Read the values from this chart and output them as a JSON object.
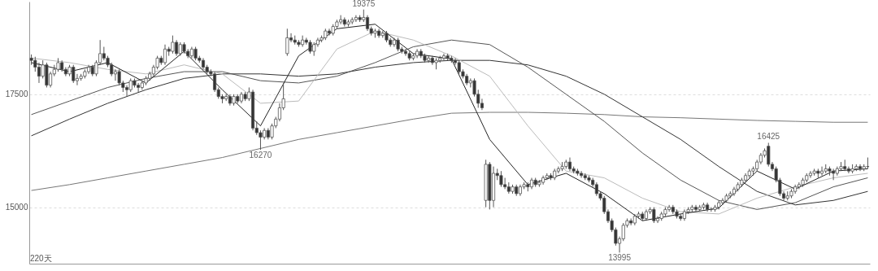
{
  "chart_data": {
    "type": "candlestick",
    "categories": [
      null,
      null,
      null,
      null,
      null,
      null,
      null,
      null,
      null,
      null,
      null,
      null,
      null,
      null,
      null,
      null,
      null,
      null,
      null,
      null,
      null,
      null,
      null,
      null,
      null,
      null,
      null,
      null,
      null,
      null,
      null,
      null,
      null,
      null,
      null,
      null,
      null,
      null,
      null,
      null,
      null,
      null,
      null,
      null,
      null,
      null,
      null,
      null,
      null,
      null,
      null,
      null,
      null,
      null,
      null,
      null,
      null,
      null,
      null,
      null,
      null,
      null,
      null,
      null,
      null,
      null,
      null,
      null,
      null,
      null,
      null,
      null,
      null,
      null,
      null,
      null,
      null,
      null,
      null,
      null,
      null,
      null,
      null,
      null,
      null,
      null,
      null,
      null,
      null,
      null,
      null,
      null,
      null,
      null,
      null,
      null,
      null,
      null,
      null,
      null,
      null,
      null,
      null,
      null,
      null,
      null,
      null,
      null,
      null,
      null,
      null,
      null,
      null,
      null,
      null,
      null,
      null,
      null,
      null,
      null,
      null,
      null,
      null,
      null,
      null,
      null,
      null,
      null,
      null,
      null,
      null,
      null,
      null,
      null,
      null,
      null,
      null,
      null,
      null,
      null,
      null,
      null,
      null,
      null,
      null,
      null,
      null,
      null,
      null,
      null,
      null,
      null,
      null,
      null,
      null,
      null,
      null,
      null,
      null,
      null,
      null,
      null,
      null,
      null,
      null,
      null,
      null,
      null,
      null,
      null,
      null,
      null,
      null,
      null,
      null,
      null,
      null,
      null,
      null,
      null,
      null,
      null,
      null,
      null,
      null,
      null,
      null,
      null,
      null,
      null,
      null,
      null,
      null,
      null,
      null,
      null,
      null,
      null,
      null,
      null,
      null,
      null,
      null,
      null,
      null,
      null,
      null,
      null,
      null,
      null,
      null,
      null,
      null,
      null,
      null,
      null,
      null,
      null,
      null,
      null
    ],
    "ohlc": [
      [
        18300,
        18380,
        18150,
        18250
      ],
      [
        18250,
        18330,
        18000,
        18100
      ],
      [
        18100,
        18200,
        17750,
        17900
      ],
      [
        17900,
        18250,
        17850,
        18150
      ],
      [
        18150,
        18200,
        17650,
        17700
      ],
      [
        17700,
        18000,
        17650,
        17950
      ],
      [
        17950,
        18150,
        17900,
        18050
      ],
      [
        18050,
        18300,
        18000,
        18200
      ],
      [
        18200,
        18250,
        18000,
        18050
      ],
      [
        18050,
        18100,
        17900,
        17950
      ],
      [
        17950,
        18150,
        17900,
        18100
      ],
      [
        18100,
        18150,
        17750,
        17800
      ],
      [
        17800,
        17950,
        17700,
        17850
      ],
      [
        17850,
        17950,
        17800,
        17900
      ],
      [
        17900,
        18050,
        17850,
        18000
      ],
      [
        18000,
        18150,
        17950,
        18100
      ],
      [
        18100,
        18150,
        17900,
        17950
      ],
      [
        17950,
        18250,
        17900,
        18200
      ],
      [
        18200,
        18700,
        18150,
        18400
      ],
      [
        18400,
        18550,
        18250,
        18300
      ],
      [
        18300,
        18350,
        18100,
        18150
      ],
      [
        18150,
        18200,
        17900,
        17950
      ],
      [
        17950,
        18050,
        17800,
        18000
      ],
      [
        18000,
        18050,
        17700,
        17750
      ],
      [
        17750,
        17800,
        17550,
        17650
      ],
      [
        17650,
        17700,
        17450,
        17600
      ],
      [
        17600,
        17850,
        17550,
        17800
      ],
      [
        17800,
        17850,
        17650,
        17700
      ],
      [
        17700,
        17750,
        17550,
        17650
      ],
      [
        17650,
        17800,
        17600,
        17750
      ],
      [
        17750,
        17900,
        17700,
        17850
      ],
      [
        17850,
        18000,
        17800,
        17950
      ],
      [
        17950,
        18150,
        17900,
        18100
      ],
      [
        18100,
        18350,
        18050,
        18300
      ],
      [
        18300,
        18350,
        18150,
        18200
      ],
      [
        18200,
        18600,
        18150,
        18500
      ],
      [
        18500,
        18550,
        18350,
        18450
      ],
      [
        18450,
        18800,
        18400,
        18650
      ],
      [
        18650,
        18700,
        18350,
        18400
      ],
      [
        18400,
        18650,
        18350,
        18600
      ],
      [
        18600,
        18650,
        18400,
        18450
      ],
      [
        18450,
        18500,
        18300,
        18350
      ],
      [
        18350,
        18550,
        18300,
        18500
      ],
      [
        18500,
        18550,
        18250,
        18300
      ],
      [
        18300,
        18350,
        18200,
        18250
      ],
      [
        18250,
        18300,
        18050,
        18100
      ],
      [
        18100,
        18150,
        17950,
        18000
      ],
      [
        18000,
        18050,
        17900,
        17950
      ],
      [
        17950,
        18000,
        17550,
        17600
      ],
      [
        17600,
        17650,
        17400,
        17450
      ],
      [
        17450,
        17500,
        17300,
        17400
      ],
      [
        17400,
        17500,
        17350,
        17450
      ],
      [
        17450,
        17500,
        17250,
        17300
      ],
      [
        17300,
        17500,
        17250,
        17450
      ],
      [
        17450,
        17500,
        17300,
        17350
      ],
      [
        17350,
        17550,
        17300,
        17500
      ],
      [
        17500,
        17550,
        17350,
        17400
      ],
      [
        17400,
        17650,
        17350,
        17550
      ],
      [
        17550,
        17600,
        16700,
        16750
      ],
      [
        16750,
        16900,
        16600,
        16650
      ],
      [
        16650,
        16700,
        16270,
        16550
      ],
      [
        16550,
        16750,
        16500,
        16700
      ],
      [
        16700,
        16750,
        16500,
        16550
      ],
      [
        16550,
        16850,
        16500,
        16800
      ],
      [
        16800,
        17000,
        16750,
        16950
      ],
      [
        16950,
        17300,
        16900,
        17200
      ],
      [
        17200,
        17750,
        17150,
        17400
      ],
      [
        18400,
        18950,
        18350,
        18750
      ],
      [
        18750,
        18850,
        18650,
        18700
      ],
      [
        18700,
        18800,
        18600,
        18650
      ],
      [
        18650,
        18700,
        18550,
        18600
      ],
      [
        18600,
        18800,
        18550,
        18700
      ],
      [
        18700,
        18750,
        18600,
        18650
      ],
      [
        18650,
        18700,
        18400,
        18450
      ],
      [
        18450,
        18650,
        18350,
        18600
      ],
      [
        18600,
        18750,
        18550,
        18700
      ],
      [
        18700,
        18800,
        18650,
        18750
      ],
      [
        18750,
        18950,
        18700,
        18900
      ],
      [
        18900,
        18950,
        18800,
        18850
      ],
      [
        18850,
        19050,
        18800,
        19000
      ],
      [
        19000,
        19150,
        18950,
        19100
      ],
      [
        19100,
        19250,
        19050,
        19150
      ],
      [
        19150,
        19200,
        19000,
        19050
      ],
      [
        19050,
        19150,
        19000,
        19100
      ],
      [
        19100,
        19200,
        19050,
        19150
      ],
      [
        19150,
        19250,
        19100,
        19200
      ],
      [
        19200,
        19250,
        19100,
        19150
      ],
      [
        19150,
        19375,
        19100,
        19200
      ],
      [
        19200,
        19250,
        18900,
        18950
      ],
      [
        18950,
        19000,
        18800,
        18850
      ],
      [
        18850,
        18950,
        18750,
        18900
      ],
      [
        18900,
        18950,
        18750,
        18800
      ],
      [
        18800,
        18900,
        18750,
        18850
      ],
      [
        18850,
        18900,
        18650,
        18700
      ],
      [
        18700,
        18750,
        18550,
        18600
      ],
      [
        18600,
        18750,
        18550,
        18700
      ],
      [
        18700,
        18750,
        18450,
        18500
      ],
      [
        18500,
        18550,
        18400,
        18450
      ],
      [
        18450,
        18500,
        18350,
        18400
      ],
      [
        18400,
        18450,
        18250,
        18300
      ],
      [
        18300,
        18400,
        18250,
        18350
      ],
      [
        18350,
        18500,
        18300,
        18450
      ],
      [
        18450,
        18500,
        18300,
        18350
      ],
      [
        18350,
        18400,
        18200,
        18250
      ],
      [
        18250,
        18350,
        18200,
        18300
      ],
      [
        18300,
        18350,
        18150,
        18200
      ],
      [
        18200,
        18300,
        18050,
        18250
      ],
      [
        18250,
        18350,
        18200,
        18300
      ],
      [
        18300,
        18400,
        18250,
        18350
      ],
      [
        18350,
        18400,
        18250,
        18300
      ],
      [
        18300,
        18350,
        18200,
        18250
      ],
      [
        18250,
        18300,
        18150,
        18200
      ],
      [
        18200,
        18250,
        17950,
        18000
      ],
      [
        18000,
        18050,
        17850,
        17900
      ],
      [
        17900,
        17950,
        17700,
        17750
      ],
      [
        17750,
        17850,
        17650,
        17800
      ],
      [
        17800,
        17850,
        17450,
        17500
      ],
      [
        17500,
        17600,
        17200,
        17300
      ],
      [
        17300,
        17400,
        17150,
        17200
      ],
      [
        15150,
        16050,
        15000,
        15950
      ],
      [
        15950,
        16000,
        14950,
        15150
      ],
      [
        15150,
        15900,
        15000,
        15750
      ],
      [
        15750,
        15850,
        15600,
        15700
      ],
      [
        15700,
        15800,
        15450,
        15500
      ],
      [
        15500,
        15650,
        15400,
        15450
      ],
      [
        15450,
        15550,
        15300,
        15350
      ],
      [
        15350,
        15500,
        15300,
        15450
      ],
      [
        15450,
        15500,
        15250,
        15300
      ],
      [
        15300,
        15500,
        15250,
        15450
      ],
      [
        15450,
        15550,
        15400,
        15500
      ],
      [
        15500,
        15550,
        15350,
        15450
      ],
      [
        15450,
        15650,
        15400,
        15600
      ],
      [
        15600,
        15650,
        15450,
        15500
      ],
      [
        15500,
        15600,
        15450,
        15550
      ],
      [
        15550,
        15700,
        15500,
        15650
      ],
      [
        15650,
        15750,
        15600,
        15700
      ],
      [
        15700,
        15750,
        15600,
        15650
      ],
      [
        15650,
        15850,
        15600,
        15800
      ],
      [
        15800,
        15900,
        15750,
        15850
      ],
      [
        15850,
        16000,
        15800,
        15900
      ],
      [
        15900,
        16050,
        15850,
        16000
      ],
      [
        16000,
        16100,
        15800,
        15850
      ],
      [
        15850,
        15900,
        15750,
        15800
      ],
      [
        15800,
        15850,
        15700,
        15750
      ],
      [
        15750,
        15800,
        15650,
        15700
      ],
      [
        15700,
        15750,
        15600,
        15650
      ],
      [
        15650,
        15700,
        15550,
        15600
      ],
      [
        15600,
        15650,
        15450,
        15500
      ],
      [
        15500,
        15550,
        15250,
        15300
      ],
      [
        15300,
        15350,
        15150,
        15200
      ],
      [
        15200,
        15250,
        14850,
        14900
      ],
      [
        14900,
        14950,
        14650,
        14700
      ],
      [
        14700,
        14750,
        14450,
        14500
      ],
      [
        14500,
        14550,
        14150,
        14200
      ],
      [
        14200,
        14350,
        13995,
        14300
      ],
      [
        14300,
        14650,
        14250,
        14600
      ],
      [
        14600,
        14750,
        14550,
        14700
      ],
      [
        14700,
        14750,
        14600,
        14650
      ],
      [
        14650,
        14850,
        14600,
        14800
      ],
      [
        14800,
        14900,
        14750,
        14850
      ],
      [
        14850,
        14900,
        14700,
        14750
      ],
      [
        14750,
        14950,
        14700,
        14900
      ],
      [
        14900,
        15000,
        14850,
        14950
      ],
      [
        14950,
        15000,
        14650,
        14700
      ],
      [
        14700,
        14800,
        14650,
        14750
      ],
      [
        14750,
        14900,
        14700,
        14850
      ],
      [
        14850,
        15000,
        14800,
        14950
      ],
      [
        14950,
        15050,
        14900,
        15000
      ],
      [
        15000,
        15050,
        14850,
        14900
      ],
      [
        14900,
        14950,
        14750,
        14800
      ],
      [
        14800,
        14850,
        14700,
        14750
      ],
      [
        14750,
        14950,
        14700,
        14900
      ],
      [
        14900,
        15000,
        14850,
        14950
      ],
      [
        14950,
        15050,
        14900,
        15000
      ],
      [
        15000,
        15050,
        14900,
        14950
      ],
      [
        14950,
        15050,
        14900,
        15000
      ],
      [
        15000,
        15100,
        14950,
        15050
      ],
      [
        15050,
        15100,
        14900,
        14950
      ],
      [
        14950,
        15000,
        14900,
        14950
      ],
      [
        14950,
        15050,
        14900,
        15000
      ],
      [
        15000,
        15150,
        14950,
        15100
      ],
      [
        15100,
        15200,
        15050,
        15150
      ],
      [
        15150,
        15300,
        15100,
        15250
      ],
      [
        15250,
        15350,
        15200,
        15300
      ],
      [
        15300,
        15450,
        15250,
        15400
      ],
      [
        15400,
        15550,
        15350,
        15500
      ],
      [
        15500,
        15650,
        15450,
        15600
      ],
      [
        15600,
        15750,
        15550,
        15700
      ],
      [
        15700,
        15850,
        15650,
        15800
      ],
      [
        15800,
        15900,
        15700,
        15850
      ],
      [
        15850,
        16050,
        15800,
        16000
      ],
      [
        16000,
        16200,
        15950,
        16150
      ],
      [
        16150,
        16300,
        16100,
        16250
      ],
      [
        16350,
        16425,
        15900,
        15950
      ],
      [
        15950,
        16000,
        15800,
        15850
      ],
      [
        15850,
        15900,
        15550,
        15600
      ],
      [
        15600,
        15650,
        15250,
        15300
      ],
      [
        15300,
        15350,
        15150,
        15200
      ],
      [
        15200,
        15350,
        15150,
        15250
      ],
      [
        15250,
        15400,
        15200,
        15350
      ],
      [
        15350,
        15500,
        15300,
        15450
      ],
      [
        15450,
        15550,
        15400,
        15500
      ],
      [
        15500,
        15650,
        15450,
        15600
      ],
      [
        15600,
        15750,
        15550,
        15700
      ],
      [
        15700,
        15800,
        15650,
        15750
      ],
      [
        15750,
        15850,
        15700,
        15800
      ],
      [
        15800,
        15850,
        15650,
        15750
      ],
      [
        15750,
        15900,
        15700,
        15800
      ],
      [
        15800,
        15950,
        15750,
        15850
      ],
      [
        15850,
        15900,
        15700,
        15800
      ],
      [
        15800,
        15850,
        15600,
        15750
      ],
      [
        15750,
        15900,
        15700,
        15850
      ],
      [
        15850,
        16000,
        15800,
        15900
      ],
      [
        15900,
        16050,
        15800,
        15850
      ],
      [
        15850,
        15900,
        15750,
        15800
      ],
      [
        15800,
        15950,
        15750,
        15850
      ],
      [
        15850,
        15950,
        15800,
        15900
      ],
      [
        15900,
        15950,
        15800,
        15850
      ],
      [
        15850,
        15950,
        15800,
        15900
      ],
      [
        15900,
        16100,
        15850,
        15900
      ]
    ],
    "series": [
      {
        "type": "line",
        "color": "#222222",
        "values": [
          18200,
          null,
          null,
          null,
          null,
          null,
          null,
          null,
          null,
          null,
          18000,
          null,
          null,
          null,
          null,
          null,
          null,
          null,
          null,
          null,
          18200,
          null,
          null,
          null,
          null,
          null,
          null,
          null,
          null,
          null,
          17750,
          null,
          null,
          null,
          null,
          null,
          null,
          null,
          null,
          null,
          18450,
          null,
          null,
          null,
          null,
          null,
          null,
          null,
          null,
          null,
          17600,
          null,
          null,
          null,
          null,
          null,
          null,
          null,
          null,
          null,
          16800,
          null,
          null,
          null,
          null,
          null,
          null,
          null,
          null,
          null,
          18350,
          null,
          null,
          null,
          null,
          null,
          null,
          null,
          null,
          null,
          18950,
          null,
          null,
          null,
          null,
          null,
          null,
          null,
          null,
          null,
          19050,
          null,
          null,
          null,
          null,
          null,
          null,
          null,
          null,
          null,
          18400,
          null,
          null,
          null,
          null,
          null,
          null,
          null,
          null,
          null,
          18280,
          null,
          null,
          null,
          null,
          null,
          null,
          null,
          null,
          null,
          16500,
          null,
          null,
          null,
          null,
          null,
          null,
          null,
          null,
          null,
          15500,
          null,
          null,
          null,
          null,
          null,
          null,
          null,
          null,
          null,
          15750,
          null,
          null,
          null,
          null,
          null,
          null,
          null,
          null,
          null,
          15300,
          null,
          null,
          null,
          null,
          null,
          null,
          null,
          null,
          null,
          14700,
          null,
          null,
          null,
          null,
          null,
          null,
          null,
          null,
          null,
          14850,
          null,
          null,
          null,
          null,
          null,
          null,
          null,
          null,
          null,
          14980,
          null,
          null,
          null,
          null,
          null,
          null,
          null,
          null,
          null,
          15800,
          null,
          null,
          null,
          null,
          null,
          null,
          null,
          null,
          null,
          15400,
          null,
          null,
          null,
          null,
          null,
          null,
          null,
          null,
          null,
          15800,
          null,
          null,
          null,
          null,
          null,
          null,
          null,
          null,
          15850
        ]
      },
      {
        "type": "line",
        "color": "#bbbbbb",
        "values": [
          18300,
          null,
          null,
          null,
          null,
          null,
          null,
          null,
          null,
          null,
          18200,
          null,
          null,
          null,
          null,
          null,
          null,
          null,
          null,
          null,
          18050,
          null,
          null,
          null,
          null,
          null,
          null,
          null,
          null,
          null,
          17950,
          null,
          null,
          null,
          null,
          null,
          null,
          null,
          null,
          null,
          18150,
          null,
          null,
          null,
          null,
          null,
          null,
          null,
          null,
          null,
          17950,
          null,
          null,
          null,
          null,
          null,
          null,
          null,
          null,
          null,
          17300,
          null,
          null,
          null,
          null,
          null,
          null,
          null,
          null,
          null,
          17350,
          null,
          null,
          null,
          null,
          null,
          null,
          null,
          null,
          null,
          18500,
          null,
          null,
          null,
          null,
          null,
          null,
          null,
          null,
          null,
          18900,
          null,
          null,
          null,
          null,
          null,
          null,
          null,
          null,
          null,
          18700,
          null,
          null,
          null,
          null,
          null,
          null,
          null,
          null,
          null,
          18350,
          null,
          null,
          null,
          null,
          null,
          null,
          null,
          null,
          null,
          17900,
          null,
          null,
          null,
          null,
          null,
          null,
          null,
          null,
          null,
          16800,
          null,
          null,
          null,
          null,
          null,
          null,
          null,
          null,
          null,
          15800,
          null,
          null,
          null,
          null,
          null,
          null,
          null,
          null,
          null,
          15650,
          null,
          null,
          null,
          null,
          null,
          null,
          null,
          null,
          null,
          15200,
          null,
          null,
          null,
          null,
          null,
          null,
          null,
          null,
          null,
          14900,
          null,
          null,
          null,
          null,
          null,
          null,
          null,
          null,
          null,
          14850,
          null,
          null,
          null,
          null,
          null,
          null,
          null,
          null,
          null,
          15200,
          null,
          null,
          null,
          null,
          null,
          null,
          null,
          null,
          null,
          15450,
          null,
          null,
          null,
          null,
          null,
          null,
          null,
          null,
          null,
          15650,
          null,
          null,
          null,
          null,
          null,
          null,
          null,
          null,
          15750
        ]
      },
      {
        "type": "line",
        "color": "#555555",
        "values": [
          17050,
          null,
          null,
          null,
          null,
          null,
          null,
          null,
          null,
          null,
          17350,
          null,
          null,
          null,
          null,
          null,
          null,
          null,
          null,
          null,
          17650,
          null,
          null,
          null,
          null,
          null,
          null,
          null,
          null,
          null,
          17850,
          null,
          null,
          null,
          null,
          null,
          null,
          null,
          null,
          null,
          18000,
          null,
          null,
          null,
          null,
          null,
          null,
          null,
          null,
          null,
          18000,
          null,
          null,
          null,
          null,
          null,
          null,
          null,
          null,
          null,
          17800,
          null,
          null,
          null,
          null,
          null,
          null,
          null,
          null,
          null,
          17750,
          null,
          null,
          null,
          null,
          null,
          null,
          null,
          null,
          null,
          17900,
          null,
          null,
          null,
          null,
          null,
          null,
          null,
          null,
          null,
          18200,
          null,
          null,
          null,
          null,
          null,
          null,
          null,
          null,
          null,
          18550,
          null,
          null,
          null,
          null,
          null,
          null,
          null,
          null,
          null,
          18700,
          null,
          null,
          null,
          null,
          null,
          null,
          null,
          null,
          null,
          18600,
          null,
          null,
          null,
          null,
          null,
          null,
          null,
          null,
          null,
          18100,
          null,
          null,
          null,
          null,
          null,
          null,
          null,
          null,
          null,
          17500,
          null,
          null,
          null,
          null,
          null,
          null,
          null,
          null,
          null,
          16900,
          null,
          null,
          null,
          null,
          null,
          null,
          null,
          null,
          null,
          16200,
          null,
          null,
          null,
          null,
          null,
          null,
          null,
          null,
          null,
          15600,
          null,
          null,
          null,
          null,
          null,
          null,
          null,
          null,
          null,
          15150,
          null,
          null,
          null,
          null,
          null,
          null,
          null,
          null,
          null,
          14950,
          null,
          null,
          null,
          null,
          null,
          null,
          null,
          null,
          null,
          15100,
          null,
          null,
          null,
          null,
          null,
          null,
          null,
          null,
          null,
          15450,
          null,
          null,
          null,
          null,
          null,
          null,
          null,
          null,
          15650
        ]
      },
      {
        "type": "line",
        "color": "#333333",
        "values": [
          16580,
          null,
          null,
          null,
          null,
          null,
          null,
          null,
          null,
          null,
          16950,
          null,
          null,
          null,
          null,
          null,
          null,
          null,
          null,
          null,
          17300,
          null,
          null,
          null,
          null,
          null,
          null,
          null,
          null,
          null,
          17600,
          null,
          null,
          null,
          null,
          null,
          null,
          null,
          null,
          null,
          17850,
          null,
          null,
          null,
          null,
          null,
          null,
          null,
          null,
          null,
          17950,
          null,
          null,
          null,
          null,
          null,
          null,
          null,
          null,
          null,
          17950,
          null,
          null,
          null,
          null,
          null,
          null,
          null,
          null,
          null,
          17900,
          null,
          null,
          null,
          null,
          null,
          null,
          null,
          null,
          null,
          17950,
          null,
          null,
          null,
          null,
          null,
          null,
          null,
          null,
          null,
          18100,
          null,
          null,
          null,
          null,
          null,
          null,
          null,
          null,
          null,
          18200,
          null,
          null,
          null,
          null,
          null,
          null,
          null,
          null,
          null,
          18250,
          null,
          null,
          null,
          null,
          null,
          null,
          null,
          null,
          null,
          18250,
          null,
          null,
          null,
          null,
          null,
          null,
          null,
          null,
          null,
          18150,
          null,
          null,
          null,
          null,
          null,
          null,
          null,
          null,
          null,
          17900,
          null,
          null,
          null,
          null,
          null,
          null,
          null,
          null,
          null,
          17500,
          null,
          null,
          null,
          null,
          null,
          null,
          null,
          null,
          null,
          17000,
          null,
          null,
          null,
          null,
          null,
          null,
          null,
          null,
          null,
          16500,
          null,
          null,
          null,
          null,
          null,
          null,
          null,
          null,
          null,
          15900,
          null,
          null,
          null,
          null,
          null,
          null,
          null,
          null,
          null,
          15350,
          null,
          null,
          null,
          null,
          null,
          null,
          null,
          null,
          null,
          15050,
          null,
          null,
          null,
          null,
          null,
          null,
          null,
          null,
          null,
          15150,
          null,
          null,
          null,
          null,
          null,
          null,
          null,
          null,
          15350
        ]
      },
      {
        "type": "line",
        "color": "#777777",
        "values": [
          15370,
          null,
          null,
          null,
          null,
          null,
          null,
          null,
          null,
          null,
          15500,
          null,
          null,
          null,
          null,
          null,
          null,
          null,
          null,
          null,
          15650,
          null,
          null,
          null,
          null,
          null,
          null,
          null,
          null,
          null,
          15800,
          null,
          null,
          null,
          null,
          null,
          null,
          null,
          null,
          null,
          15950,
          null,
          null,
          null,
          null,
          null,
          null,
          null,
          null,
          null,
          16100,
          null,
          null,
          null,
          null,
          null,
          null,
          null,
          null,
          null,
          16300,
          null,
          null,
          null,
          null,
          null,
          null,
          null,
          null,
          null,
          16500,
          null,
          null,
          null,
          null,
          null,
          null,
          null,
          null,
          null,
          16650,
          null,
          null,
          null,
          null,
          null,
          null,
          null,
          null,
          null,
          16800,
          null,
          null,
          null,
          null,
          null,
          null,
          null,
          null,
          null,
          16950,
          null,
          null,
          null,
          null,
          null,
          null,
          null,
          null,
          null,
          17080,
          null,
          null,
          null,
          null,
          null,
          null,
          null,
          null,
          null,
          17100,
          null,
          null,
          null,
          null,
          null,
          null,
          null,
          null,
          null,
          17100,
          null,
          null,
          null,
          null,
          null,
          null,
          null,
          null,
          null,
          17080,
          null,
          null,
          null,
          null,
          null,
          null,
          null,
          null,
          null,
          17050,
          null,
          null,
          null,
          null,
          null,
          null,
          null,
          null,
          null,
          17000,
          null,
          null,
          null,
          null,
          null,
          null,
          null,
          null,
          null,
          16980,
          null,
          null,
          null,
          null,
          null,
          null,
          null,
          null,
          null,
          16950,
          null,
          null,
          null,
          null,
          null,
          null,
          null,
          null,
          null,
          16920,
          null,
          null,
          null,
          null,
          null,
          null,
          null,
          null,
          null,
          16900,
          null,
          null,
          null,
          null,
          null,
          null,
          null,
          null,
          null,
          16880,
          null,
          null,
          null,
          null,
          null,
          null,
          null,
          null,
          16880
        ]
      }
    ],
    "ylim": [
      13750,
      19550
    ],
    "yticks": [
      15000,
      17500
    ],
    "grid": "y",
    "tick_labels": "y",
    "annotations": [
      {
        "text": "19375",
        "y": 19375
      },
      {
        "text": "16270",
        "y": 16270
      },
      {
        "text": "13995",
        "y": 13995
      },
      {
        "text": "16425",
        "y": 16425
      },
      "220天"
    ]
  }
}
